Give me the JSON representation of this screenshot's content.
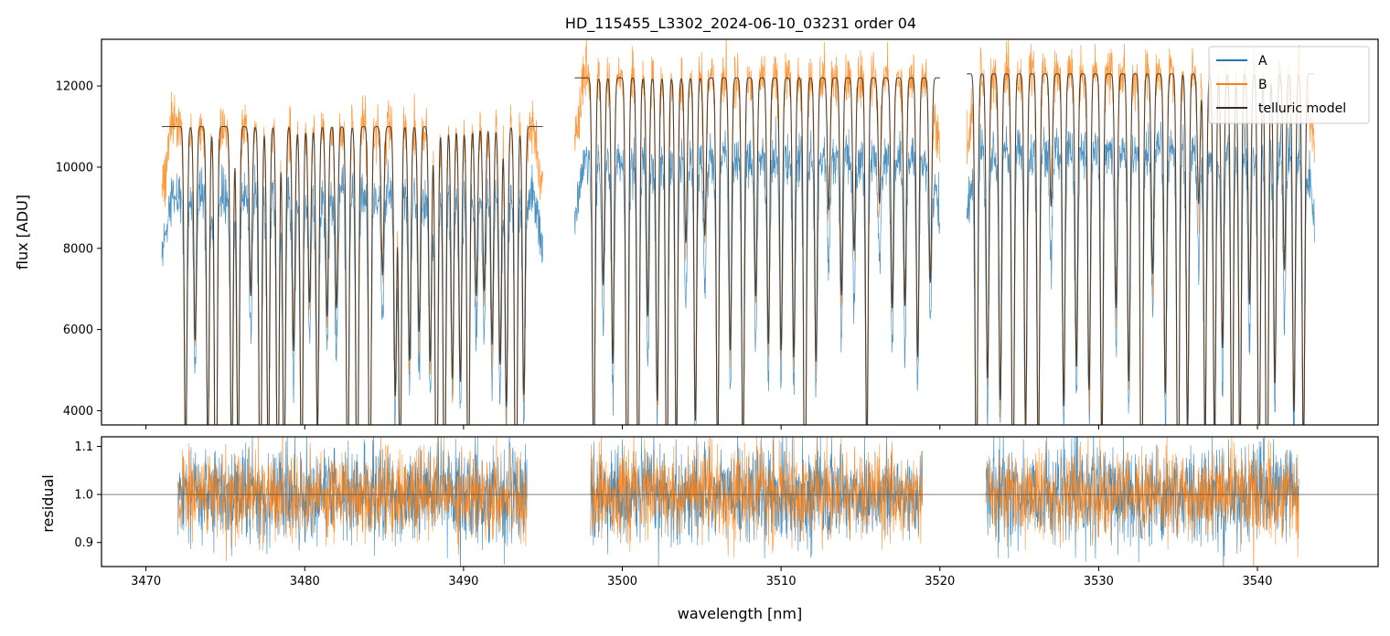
{
  "chart_data": [
    {
      "type": "line",
      "title": "HD_115455_L3302_2024-06-10_03231  order 04",
      "xlabel": "",
      "ylabel": "flux [ADU]",
      "xlim": [
        3467.2,
        3547.6
      ],
      "ylim": [
        3650,
        13150
      ],
      "yticks": [
        4000,
        6000,
        8000,
        10000,
        12000
      ],
      "xticks": [
        3470,
        3480,
        3490,
        3500,
        3510,
        3520,
        3530,
        3540
      ],
      "grid": false,
      "legend": "top-right",
      "segments": [
        [
          3471.0,
          3495.0
        ],
        [
          3497.0,
          3520.0
        ],
        [
          3521.7,
          3543.6
        ]
      ],
      "series": [
        {
          "name": "A",
          "color": "#1f77b4",
          "level": [
            9300,
            10200,
            10400
          ],
          "noise": 500
        },
        {
          "name": "B",
          "color": "#ff7f0e",
          "level": [
            11000,
            12200,
            12300
          ],
          "noise": 550
        },
        {
          "name": "telluric model",
          "color": "#3a2a1a"
        }
      ],
      "absorption_lines_nm": [
        3472.5,
        3473.1,
        3473.9,
        3474.4,
        3475.4,
        3475.8,
        3476.6,
        3477.2,
        3477.7,
        3478.3,
        3478.7,
        3479.3,
        3479.8,
        3480.3,
        3480.8,
        3481.4,
        3482.0,
        3482.7,
        3483.3,
        3484.1,
        3484.9,
        3485.7,
        3486.0,
        3486.6,
        3487.2,
        3487.9,
        3488.3,
        3488.8,
        3489.3,
        3489.8,
        3490.3,
        3490.8,
        3491.3,
        3491.8,
        3492.3,
        3492.7,
        3493.3,
        3493.8,
        3498.2,
        3498.8,
        3499.4,
        3500.3,
        3501.0,
        3501.6,
        3502.2,
        3502.8,
        3503.4,
        3504.0,
        3504.6,
        3505.2,
        3506.0,
        3506.8,
        3507.6,
        3508.4,
        3509.2,
        3510.0,
        3510.8,
        3511.5,
        3512.2,
        3513.0,
        3513.8,
        3514.6,
        3515.4,
        3516.2,
        3517.0,
        3517.8,
        3518.6,
        3519.4,
        3522.3,
        3523.0,
        3523.8,
        3524.6,
        3525.4,
        3526.2,
        3527.0,
        3527.8,
        3528.6,
        3529.4,
        3530.2,
        3531.1,
        3531.9,
        3532.7,
        3533.4,
        3534.2,
        3535.0,
        3535.6,
        3536.3,
        3536.7,
        3537.3,
        3537.8,
        3538.4,
        3538.9,
        3539.5,
        3540.1,
        3540.6,
        3541.1,
        3541.7,
        3542.3,
        3542.9
      ]
    },
    {
      "type": "line",
      "title": "",
      "xlabel": "wavelength [nm]",
      "ylabel": "residual",
      "xlim": [
        3467.2,
        3547.6
      ],
      "ylim": [
        0.85,
        1.12
      ],
      "yticks": [
        0.9,
        1.0,
        1.1
      ],
      "xticks": [
        3470,
        3480,
        3490,
        3500,
        3510,
        3520,
        3530,
        3540
      ],
      "reference_line": 1.0,
      "segments": [
        [
          3472.0,
          3494.0
        ],
        [
          3498.0,
          3518.9
        ],
        [
          3522.9,
          3542.6
        ]
      ],
      "series": [
        {
          "name": "A",
          "color": "#1f77b4",
          "mean": 1.0,
          "noise": 0.05
        },
        {
          "name": "B",
          "color": "#ff7f0e",
          "mean": 1.0,
          "noise": 0.045
        }
      ]
    }
  ],
  "labels": {
    "title": "HD_115455_L3302_2024-06-10_03231  order 04",
    "top_ylabel": "flux [ADU]",
    "bottom_ylabel": "residual",
    "xlabel": "wavelength [nm]",
    "legend": [
      "A",
      "B",
      "telluric model"
    ]
  }
}
